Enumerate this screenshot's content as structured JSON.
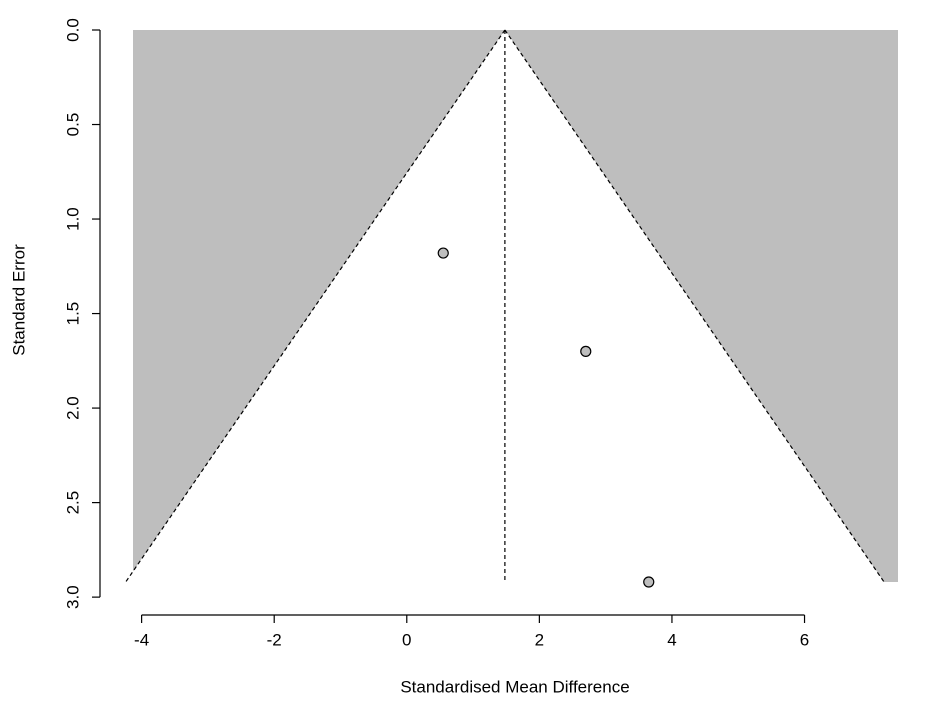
{
  "chart_data": {
    "type": "funnel",
    "xlabel": "Standardised Mean Difference",
    "ylabel": "Standard Error",
    "x": [
      0.55,
      2.7,
      3.65
    ],
    "values": [
      1.18,
      1.7,
      2.92
    ],
    "estimate": 1.48,
    "funnel_bottom": [
      -4.24,
      7.2
    ],
    "xlim": [
      -4.13,
      7.41
    ],
    "ylim": [
      0,
      2.92
    ],
    "xticks": [
      -4,
      -2,
      0,
      2,
      4,
      6
    ],
    "yticks": [
      {
        "value": 0,
        "label": "0.0"
      },
      0.5,
      {
        "value": 1,
        "label": "1.0"
      },
      1.5,
      {
        "value": 2,
        "label": "2.0"
      },
      2.5,
      {
        "value": 3,
        "label": "3.0"
      }
    ],
    "y_reversed": true,
    "color": "#bebebe",
    "region_color": "#bebebe"
  }
}
